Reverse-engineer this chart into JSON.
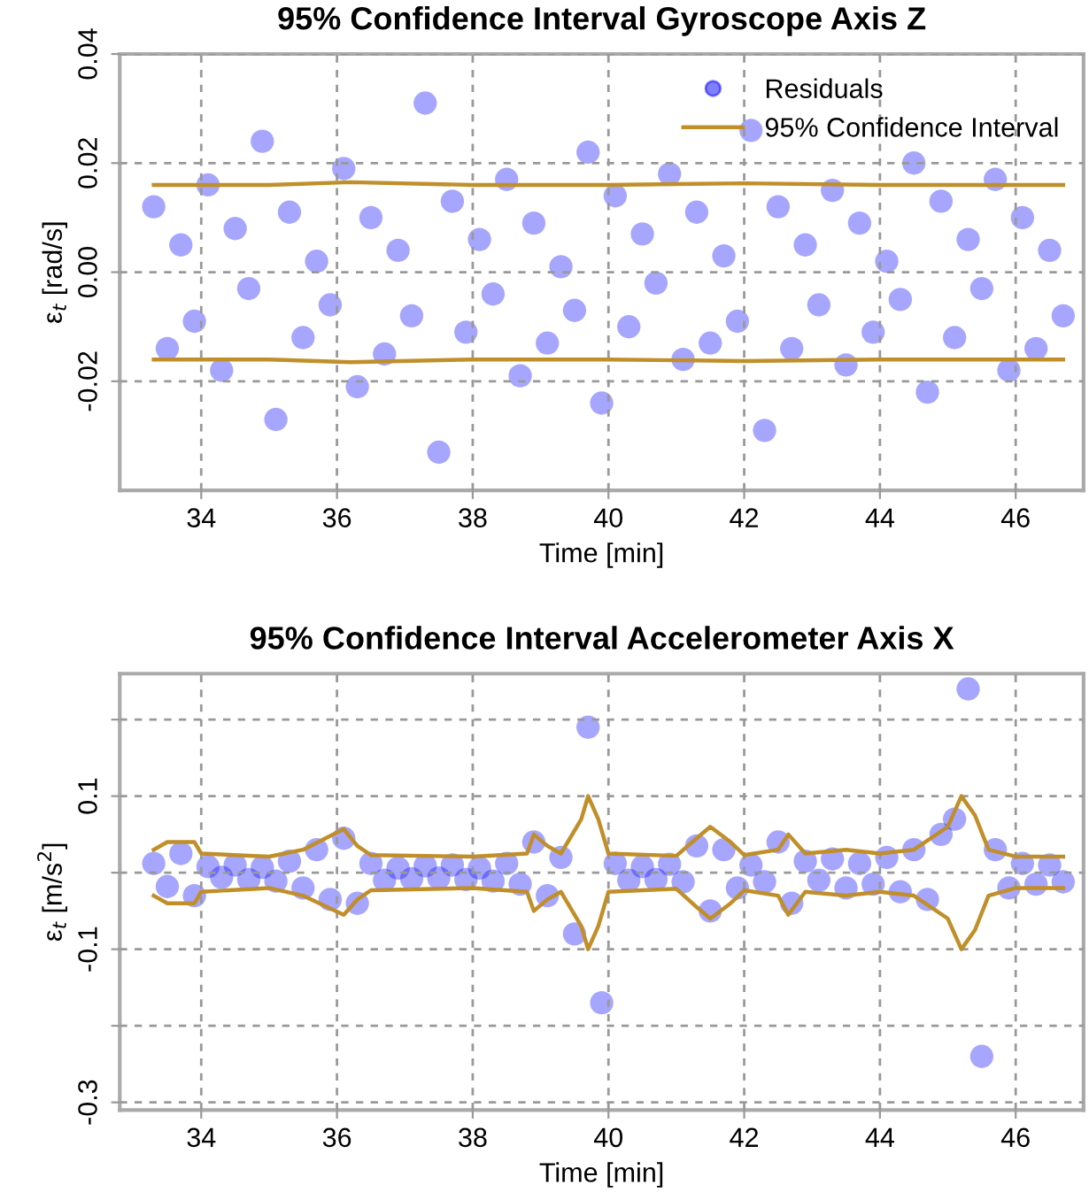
{
  "chart_data": [
    {
      "type": "scatter",
      "title": "95% Confidence Interval Gyroscope Axis Z",
      "xlabel": "Time [min]",
      "ylabel": "ε$_{t}$ [rad/s]",
      "xlim": [
        32.8,
        47.0
      ],
      "xticks": [
        34,
        36,
        38,
        40,
        42,
        44,
        46
      ],
      "ylim": [
        -0.04,
        0.04
      ],
      "yticks": [
        {
          "value": -0.02,
          "label": "-0.02"
        },
        {
          "value": 0,
          "label": "0.00"
        },
        {
          "value": 0.02,
          "label": "0.02"
        },
        {
          "value": 0.04,
          "label": "0.04"
        }
      ],
      "grid": true,
      "legend": "top right",
      "series": [
        {
          "name": "Residuals",
          "marker": "circle",
          "color": "#0000ff",
          "x": [
            33.3,
            33.5,
            33.7,
            33.9,
            34.1,
            34.3,
            34.5,
            34.7,
            34.9,
            35.1,
            35.3,
            35.5,
            35.7,
            35.9,
            36.1,
            36.3,
            36.5,
            36.7,
            36.9,
            37.1,
            37.3,
            37.5,
            37.7,
            37.9,
            38.1,
            38.3,
            38.5,
            38.7,
            38.9,
            39.1,
            39.3,
            39.5,
            39.7,
            39.9,
            40.1,
            40.3,
            40.5,
            40.7,
            40.9,
            41.1,
            41.3,
            41.5,
            41.7,
            41.9,
            42.1,
            42.3,
            42.5,
            42.7,
            42.9,
            43.1,
            43.3,
            43.5,
            43.7,
            43.9,
            44.1,
            44.3,
            44.5,
            44.7,
            44.9,
            45.1,
            45.3,
            45.5,
            45.7,
            45.9,
            46.1,
            46.3,
            46.5,
            46.7
          ],
          "values": [
            0.012,
            -0.014,
            0.005,
            -0.009,
            0.016,
            -0.018,
            0.008,
            -0.003,
            0.024,
            -0.027,
            0.011,
            -0.012,
            0.002,
            -0.006,
            0.019,
            -0.021,
            0.01,
            -0.015,
            0.004,
            -0.008,
            0.031,
            -0.033,
            0.013,
            -0.011,
            0.006,
            -0.004,
            0.017,
            -0.019,
            0.009,
            -0.013,
            0.001,
            -0.007,
            0.022,
            -0.024,
            0.014,
            -0.01,
            0.007,
            -0.002,
            0.018,
            -0.016,
            0.011,
            -0.013,
            0.003,
            -0.009,
            0.026,
            -0.029,
            0.012,
            -0.014,
            0.005,
            -0.006,
            0.015,
            -0.017,
            0.009,
            -0.011,
            0.002,
            -0.005,
            0.02,
            -0.022,
            0.013,
            -0.012,
            0.006,
            -0.003,
            0.017,
            -0.018,
            0.01,
            -0.014,
            0.004,
            -0.008
          ]
        },
        {
          "name": "95% Confidence Interval",
          "type": "line",
          "color": "#c08f2a",
          "x": [
            33.3,
            35,
            36.2,
            38,
            40,
            42,
            44,
            46.7
          ],
          "values": [
            0.016,
            0.016,
            0.0165,
            0.016,
            0.016,
            0.0163,
            0.016,
            0.016
          ]
        },
        {
          "type": "line",
          "color": "#c08f2a",
          "x": [
            33.3,
            35,
            36.2,
            38,
            40,
            42,
            44,
            46.7
          ],
          "values": [
            -0.016,
            -0.016,
            -0.0165,
            -0.016,
            -0.016,
            -0.0163,
            -0.016,
            -0.016
          ]
        }
      ]
    },
    {
      "type": "scatter",
      "title": "95% Confidence Interval Accelerometer Axis X",
      "xlabel": "Time [min]",
      "ylabel": "ε$_{t}$ [m/s$^{2}$]",
      "xlim": [
        32.8,
        47.0
      ],
      "xticks": [
        34,
        36,
        38,
        40,
        42,
        44,
        46
      ],
      "ylim": [
        -0.31,
        0.26
      ],
      "yticks": [
        {
          "value": -0.3,
          "label": "-0.3"
        },
        {
          "value": -0.2,
          "label": null
        },
        {
          "value": -0.1,
          "label": "-0.1"
        },
        {
          "value": 0,
          "label": null
        },
        {
          "value": 0.1,
          "label": "0.1"
        },
        {
          "value": 0.2,
          "label": null
        }
      ],
      "grid": true,
      "series": [
        {
          "marker": "circle",
          "color": "#0000ff",
          "x": [
            33.3,
            33.5,
            33.7,
            33.9,
            34.1,
            34.3,
            34.5,
            34.7,
            34.9,
            35.1,
            35.3,
            35.5,
            35.7,
            35.9,
            36.1,
            36.3,
            36.5,
            36.7,
            36.9,
            37.1,
            37.3,
            37.5,
            37.7,
            37.9,
            38.1,
            38.3,
            38.5,
            38.7,
            38.9,
            39.1,
            39.3,
            39.5,
            39.7,
            39.9,
            40.1,
            40.3,
            40.5,
            40.7,
            40.9,
            41.1,
            41.3,
            41.5,
            41.7,
            41.9,
            42.1,
            42.3,
            42.5,
            42.7,
            42.9,
            43.1,
            43.3,
            43.5,
            43.7,
            43.9,
            44.1,
            44.3,
            44.5,
            44.7,
            44.9,
            45.1,
            45.3,
            45.5,
            45.7,
            45.9,
            46.1,
            46.3,
            46.5,
            46.7
          ],
          "values": [
            0.012,
            -0.018,
            0.025,
            -0.03,
            0.008,
            -0.006,
            0.01,
            -0.009,
            0.007,
            -0.011,
            0.015,
            -0.02,
            0.03,
            -0.035,
            0.045,
            -0.04,
            0.012,
            -0.01,
            0.006,
            -0.008,
            0.009,
            -0.007,
            0.01,
            -0.009,
            0.006,
            -0.011,
            0.012,
            -0.015,
            0.04,
            -0.03,
            0.02,
            -0.08,
            0.19,
            -0.17,
            0.012,
            -0.01,
            0.008,
            -0.009,
            0.011,
            -0.012,
            0.035,
            -0.05,
            0.03,
            -0.02,
            0.01,
            -0.012,
            0.04,
            -0.04,
            0.015,
            -0.01,
            0.018,
            -0.02,
            0.012,
            -0.015,
            0.02,
            -0.025,
            0.03,
            -0.035,
            0.05,
            0.07,
            0.24,
            -0.24,
            0.03,
            -0.02,
            0.012,
            -0.015,
            0.01,
            -0.012
          ]
        },
        {
          "type": "line",
          "color": "#c08f2a",
          "x": [
            33.3,
            33.5,
            33.9,
            34.0,
            35.0,
            35.5,
            36.1,
            36.3,
            36.5,
            38.0,
            38.8,
            38.9,
            39.1,
            39.3,
            39.6,
            39.7,
            39.85,
            40.0,
            41.0,
            41.3,
            41.5,
            41.8,
            42.0,
            42.5,
            42.65,
            42.9,
            43.5,
            44.0,
            44.5,
            45.0,
            45.2,
            45.4,
            45.6,
            46.0,
            46.7
          ],
          "values": [
            0.03,
            0.04,
            0.04,
            0.025,
            0.021,
            0.03,
            0.057,
            0.035,
            0.023,
            0.021,
            0.025,
            0.05,
            0.035,
            0.025,
            0.07,
            0.1,
            0.07,
            0.025,
            0.022,
            0.045,
            0.06,
            0.04,
            0.023,
            0.03,
            0.05,
            0.025,
            0.03,
            0.025,
            0.03,
            0.06,
            0.1,
            0.075,
            0.03,
            0.021,
            0.021
          ]
        },
        {
          "type": "line",
          "color": "#c08f2a",
          "x": [
            33.3,
            33.5,
            33.9,
            34.0,
            35.0,
            35.5,
            36.1,
            36.3,
            36.5,
            38.0,
            38.8,
            38.9,
            39.1,
            39.3,
            39.6,
            39.7,
            39.85,
            40.0,
            41.0,
            41.3,
            41.5,
            41.8,
            42.0,
            42.5,
            42.65,
            42.9,
            43.5,
            44.0,
            44.5,
            45.0,
            45.2,
            45.4,
            45.6,
            46.0,
            46.7
          ],
          "values": [
            -0.03,
            -0.04,
            -0.04,
            -0.025,
            -0.02,
            -0.03,
            -0.055,
            -0.035,
            -0.023,
            -0.02,
            -0.025,
            -0.05,
            -0.035,
            -0.025,
            -0.07,
            -0.1,
            -0.07,
            -0.025,
            -0.021,
            -0.045,
            -0.06,
            -0.04,
            -0.023,
            -0.03,
            -0.055,
            -0.025,
            -0.03,
            -0.025,
            -0.03,
            -0.06,
            -0.1,
            -0.075,
            -0.03,
            -0.02,
            -0.02
          ]
        }
      ]
    }
  ]
}
